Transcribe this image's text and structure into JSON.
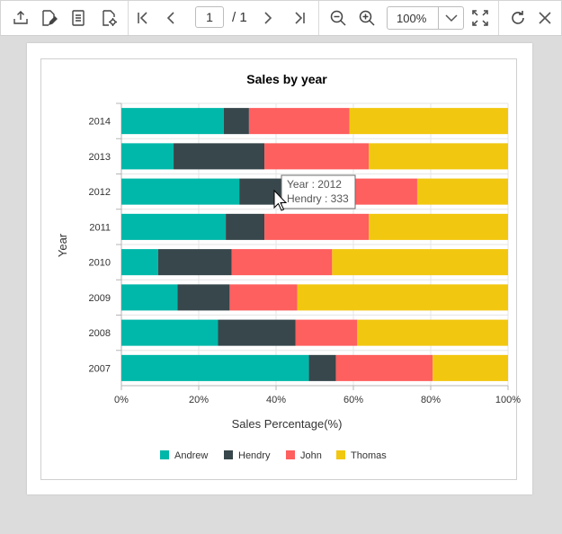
{
  "toolbar": {
    "page_current": "1",
    "page_total": "/ 1",
    "zoom": "100%",
    "icons": [
      "export-icon",
      "edit-annotation-icon",
      "document-icon",
      "document-settings-icon",
      "first-page-icon",
      "previous-page-icon",
      "next-page-icon",
      "last-page-icon",
      "zoom-out-icon",
      "zoom-in-icon",
      "fit-page-icon",
      "refresh-icon",
      "close-icon"
    ]
  },
  "chart_data": {
    "type": "bar",
    "stacking": "100%",
    "orientation": "horizontal",
    "title": "Sales by year",
    "xlabel": "Sales Percentage(%)",
    "ylabel": "Year",
    "categories": [
      "2007",
      "2008",
      "2009",
      "2010",
      "2011",
      "2012",
      "2013",
      "2014"
    ],
    "xlim": [
      0,
      100
    ],
    "x_ticks": [
      "0%",
      "20%",
      "40%",
      "60%",
      "80%",
      "100%"
    ],
    "legend_position": "bottom",
    "grid": true,
    "series": [
      {
        "name": "Andrew",
        "color": "#00b8a9",
        "values": [
          48.5,
          25,
          14.5,
          9.5,
          27,
          30.5,
          13.5,
          26.5
        ]
      },
      {
        "name": "Hendry",
        "color": "#37474b",
        "values": [
          7,
          20,
          13.5,
          19,
          10,
          11.5,
          23.5,
          6.5
        ]
      },
      {
        "name": "John",
        "color": "#fe5f5f",
        "values": [
          25,
          16,
          17.5,
          26,
          27,
          34.5,
          27,
          26
        ]
      },
      {
        "name": "Thomas",
        "color": "#f2c70f",
        "values": [
          19.5,
          39,
          54.5,
          45.5,
          36,
          23.5,
          36,
          41
        ]
      }
    ],
    "tooltip": {
      "category": "2012",
      "series": "Hendry",
      "line1": "Year : 2012",
      "line2": "Hendry : 333"
    }
  }
}
